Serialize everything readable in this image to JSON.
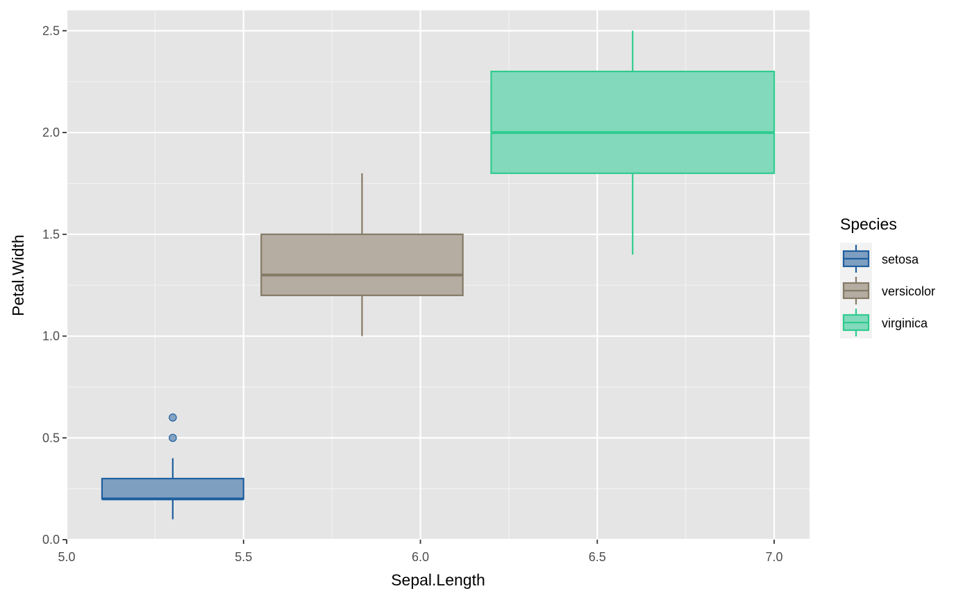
{
  "chart_data": {
    "type": "boxplot",
    "xlabel": "Sepal.Length",
    "ylabel": "Petal.Width",
    "xlim": [
      5.0,
      7.1
    ],
    "ylim": [
      0.0,
      2.6
    ],
    "x_ticks": [
      5.0,
      5.5,
      6.0,
      6.5,
      7.0
    ],
    "x_tick_labels": [
      "5.0",
      "5.5",
      "6.0",
      "6.5",
      "7.0"
    ],
    "y_ticks": [
      0.0,
      0.5,
      1.0,
      1.5,
      2.0,
      2.5
    ],
    "y_tick_labels": [
      "0.0",
      "0.5",
      "1.0",
      "1.5",
      "2.0",
      "2.5"
    ],
    "grid": true,
    "legend": {
      "title": "Species",
      "position": "right",
      "entries": [
        "setosa",
        "versicolor",
        "virginica"
      ]
    },
    "series": [
      {
        "name": "setosa",
        "color": "#1f5f9f",
        "fill": "#7f9fc0",
        "x_min": 5.1,
        "x_max": 5.5,
        "x_center": 5.3,
        "whisker_low": 0.1,
        "q1": 0.2,
        "median": 0.2,
        "q3": 0.3,
        "whisker_high": 0.4,
        "outliers": [
          0.5,
          0.6
        ]
      },
      {
        "name": "versicolor",
        "color": "#857a66",
        "fill": "#b5aca2",
        "x_min": 5.55,
        "x_max": 6.12,
        "x_center": 5.835,
        "whisker_low": 1.0,
        "q1": 1.2,
        "median": 1.3,
        "q3": 1.5,
        "whisker_high": 1.8,
        "outliers": []
      },
      {
        "name": "virginica",
        "color": "#2ecc8f",
        "fill": "#83d9bc",
        "x_min": 6.2,
        "x_max": 7.0,
        "x_center": 6.6,
        "whisker_low": 1.4,
        "q1": 1.8,
        "median": 2.0,
        "q3": 2.3,
        "whisker_high": 2.5,
        "outliers": []
      }
    ]
  }
}
